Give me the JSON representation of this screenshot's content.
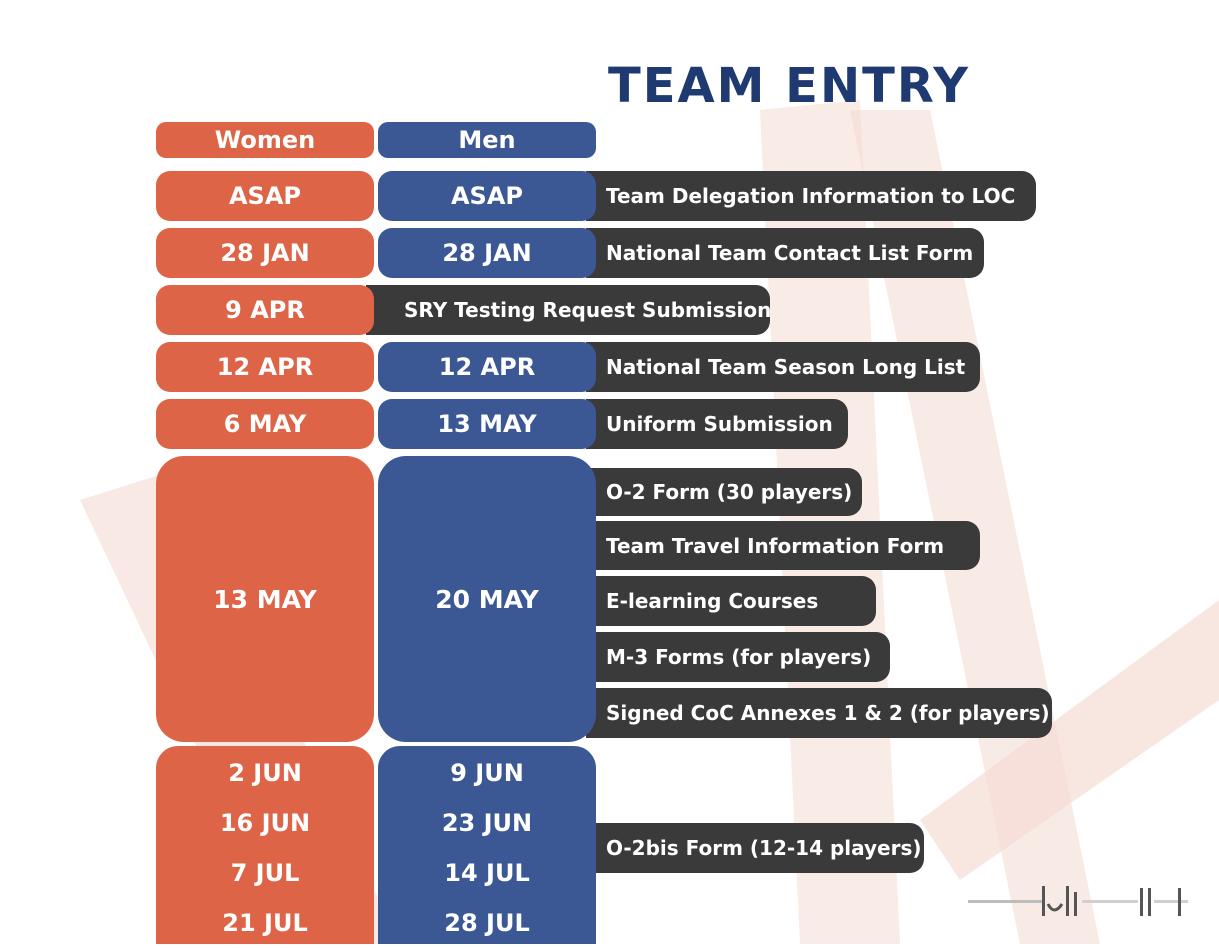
{
  "title": "TEAM ENTRY",
  "headers": {
    "women": "Women",
    "men": "Men"
  },
  "rows": [
    {
      "women": "ASAP",
      "men": "ASAP",
      "task": "Team Delegation Information to LOC"
    },
    {
      "women": "28 JAN",
      "men": "28 JAN",
      "task": "National Team Contact List Form"
    },
    {
      "women": "9 APR",
      "task": "SRY Testing Request Submission"
    },
    {
      "women": "12 APR",
      "men": "12 APR",
      "task": "National Team Season Long List"
    },
    {
      "women": "6 MAY",
      "men": "13 MAY",
      "task": "Uniform Submission"
    }
  ],
  "group": {
    "women": "13 MAY",
    "men": "20 MAY",
    "tasks": [
      "O-2 Form (30 players)",
      "Team Travel Information Form",
      "E-learning Courses",
      "M-3 Forms (for players)",
      "Signed CoC Annexes 1 & 2 (for players)"
    ]
  },
  "multi": {
    "women": [
      "2 JUN",
      "16 JUN",
      "7 JUL",
      "21 JUL"
    ],
    "men": [
      "9 JUN",
      "23 JUN",
      "14 JUL",
      "28 JUL"
    ],
    "task": "O-2bis Form (12-14 players)"
  },
  "colors": {
    "women": "#de6447",
    "men": "#3b5894",
    "task_bar": "#3a3a3a",
    "title": "#1f3a70"
  }
}
